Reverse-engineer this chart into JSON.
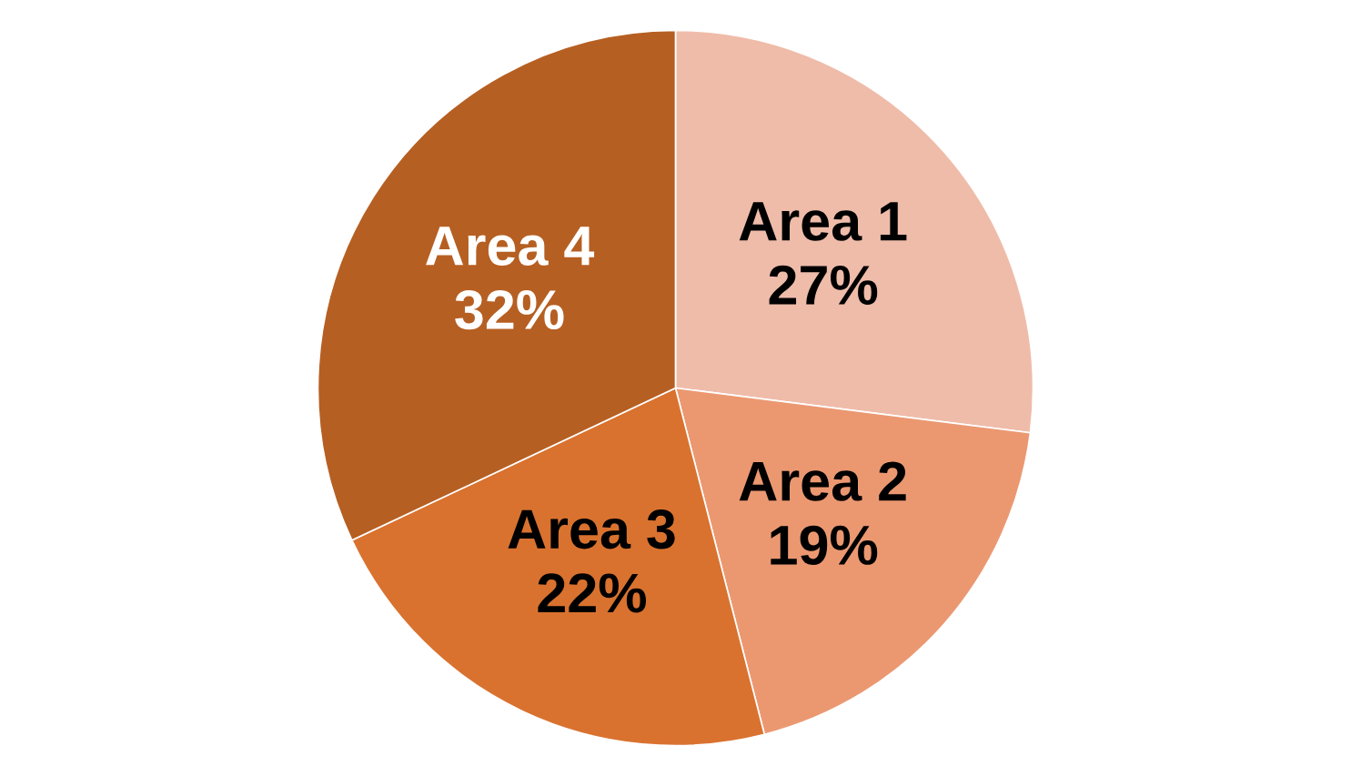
{
  "chart_data": {
    "type": "pie",
    "categories": [
      "Area 1",
      "Area 2",
      "Area 3",
      "Area 4"
    ],
    "values": [
      27,
      19,
      22,
      32
    ],
    "colors": [
      "#efbcaa",
      "#eb9871",
      "#d9722f",
      "#b65f22"
    ],
    "value_labels": [
      "27%",
      "19%",
      "22%",
      "32%"
    ]
  }
}
